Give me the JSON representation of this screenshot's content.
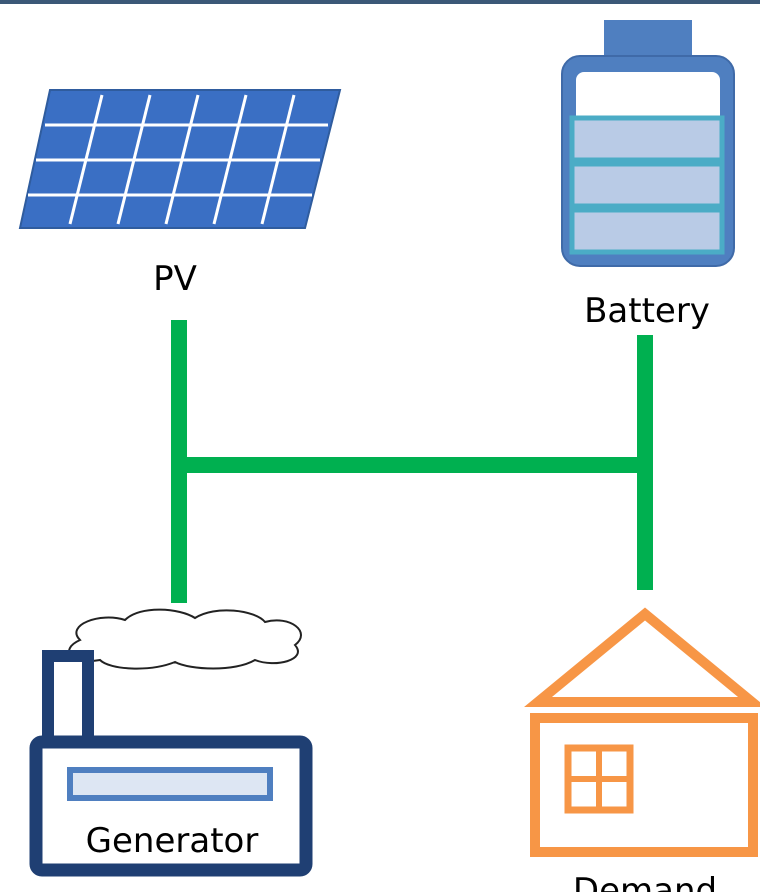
{
  "nodes": [
    {
      "label": "PV"
    },
    {
      "label": "Battery"
    },
    {
      "label": "Generator"
    },
    {
      "label": "Demand"
    }
  ]
}
